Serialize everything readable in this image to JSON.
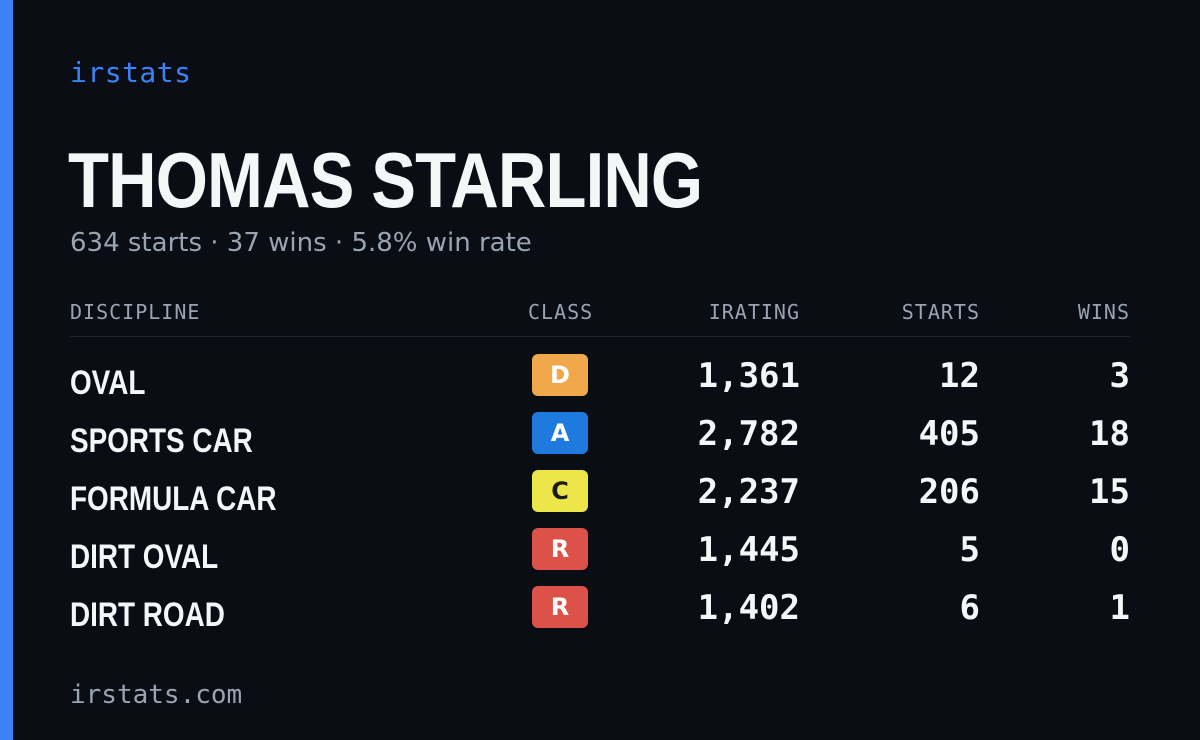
{
  "brand": "irstats",
  "driver": {
    "name": "THOMAS STARLING",
    "summary": "634 starts · 37 wins · 5.8% win rate"
  },
  "table": {
    "headers": {
      "discipline": "DISCIPLINE",
      "class": "CLASS",
      "irating": "IRATING",
      "starts": "STARTS",
      "wins": "WINS"
    },
    "rows": [
      {
        "discipline": "OVAL",
        "class": "D",
        "class_color": "#f0a84a",
        "class_text_color": "#ffffff",
        "irating": "1,361",
        "starts": "12",
        "wins": "3"
      },
      {
        "discipline": "SPORTS CAR",
        "class": "A",
        "class_color": "#1f7ae0",
        "class_text_color": "#ffffff",
        "irating": "2,782",
        "starts": "405",
        "wins": "18"
      },
      {
        "discipline": "FORMULA CAR",
        "class": "C",
        "class_color": "#ece64a",
        "class_text_color": "#1b1b1b",
        "irating": "2,237",
        "starts": "206",
        "wins": "15"
      },
      {
        "discipline": "DIRT OVAL",
        "class": "R",
        "class_color": "#dc5148",
        "class_text_color": "#ffffff",
        "irating": "1,445",
        "starts": "5",
        "wins": "0"
      },
      {
        "discipline": "DIRT ROAD",
        "class": "R",
        "class_color": "#dc5148",
        "class_text_color": "#ffffff",
        "irating": "1,402",
        "starts": "6",
        "wins": "1"
      }
    ]
  },
  "footer": "irstats.com",
  "colors": {
    "accent": "#3b82f6",
    "background": "#0a0d14",
    "muted_text": "#9aa3b2",
    "primary_text": "#f5f6f8"
  }
}
